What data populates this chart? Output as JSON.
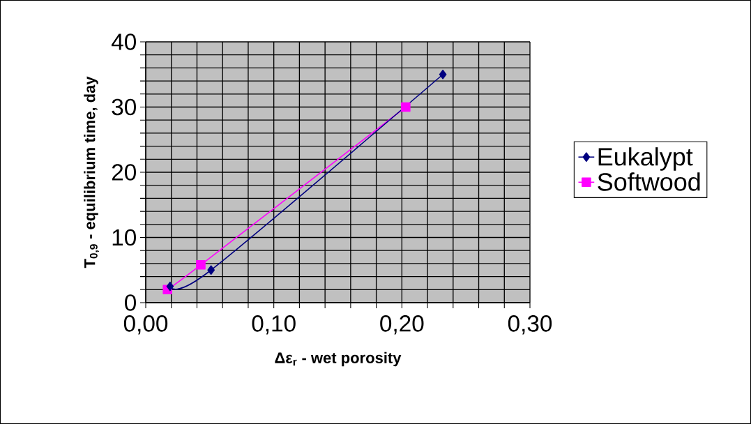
{
  "chart_data": {
    "type": "line",
    "xlabel": "Δε$_{r}$ - wet porosity",
    "ylabel": "T$_{0,9}$ - equilibrium time, day",
    "series": [
      {
        "name": "Eukalypt",
        "color": "#000080",
        "marker": "diamond",
        "x": [
          0.019,
          0.051,
          0.232
        ],
        "values": [
          2.5,
          5,
          35
        ]
      },
      {
        "name": "Softwood",
        "color": "#ff00ff",
        "marker": "square",
        "x": [
          0.017,
          0.043,
          0.203
        ],
        "values": [
          2,
          5.8,
          30
        ]
      }
    ],
    "xlim": [
      0,
      0.3
    ],
    "ylim": [
      0,
      40
    ],
    "xticks": [
      {
        "value": 0,
        "label": "0,00"
      },
      {
        "value": 0.02,
        "label": null
      },
      {
        "value": 0.04,
        "label": null
      },
      {
        "value": 0.06,
        "label": null
      },
      {
        "value": 0.08,
        "label": null
      },
      {
        "value": 0.1,
        "label": "0,10"
      },
      {
        "value": 0.12,
        "label": null
      },
      {
        "value": 0.14,
        "label": null
      },
      {
        "value": 0.16,
        "label": null
      },
      {
        "value": 0.18,
        "label": null
      },
      {
        "value": 0.2,
        "label": "0,20"
      },
      {
        "value": 0.22,
        "label": null
      },
      {
        "value": 0.24,
        "label": null
      },
      {
        "value": 0.26,
        "label": null
      },
      {
        "value": 0.28,
        "label": null
      },
      {
        "value": 0.3,
        "label": "0,30"
      }
    ],
    "yticks": [
      0,
      {
        "value": 2,
        "label": null
      },
      {
        "value": 4,
        "label": null
      },
      {
        "value": 6,
        "label": null
      },
      {
        "value": 8,
        "label": null
      },
      10,
      {
        "value": 12,
        "label": null
      },
      {
        "value": 14,
        "label": null
      },
      {
        "value": 16,
        "label": null
      },
      {
        "value": 18,
        "label": null
      },
      20,
      {
        "value": 22,
        "label": null
      },
      {
        "value": 24,
        "label": null
      },
      {
        "value": 26,
        "label": null
      },
      {
        "value": 28,
        "label": null
      },
      30,
      {
        "value": 32,
        "label": null
      },
      {
        "value": 34,
        "label": null
      },
      {
        "value": 36,
        "label": null
      },
      {
        "value": 38,
        "label": null
      },
      40
    ],
    "grid": true,
    "legend": "right",
    "line_style": "solid"
  }
}
